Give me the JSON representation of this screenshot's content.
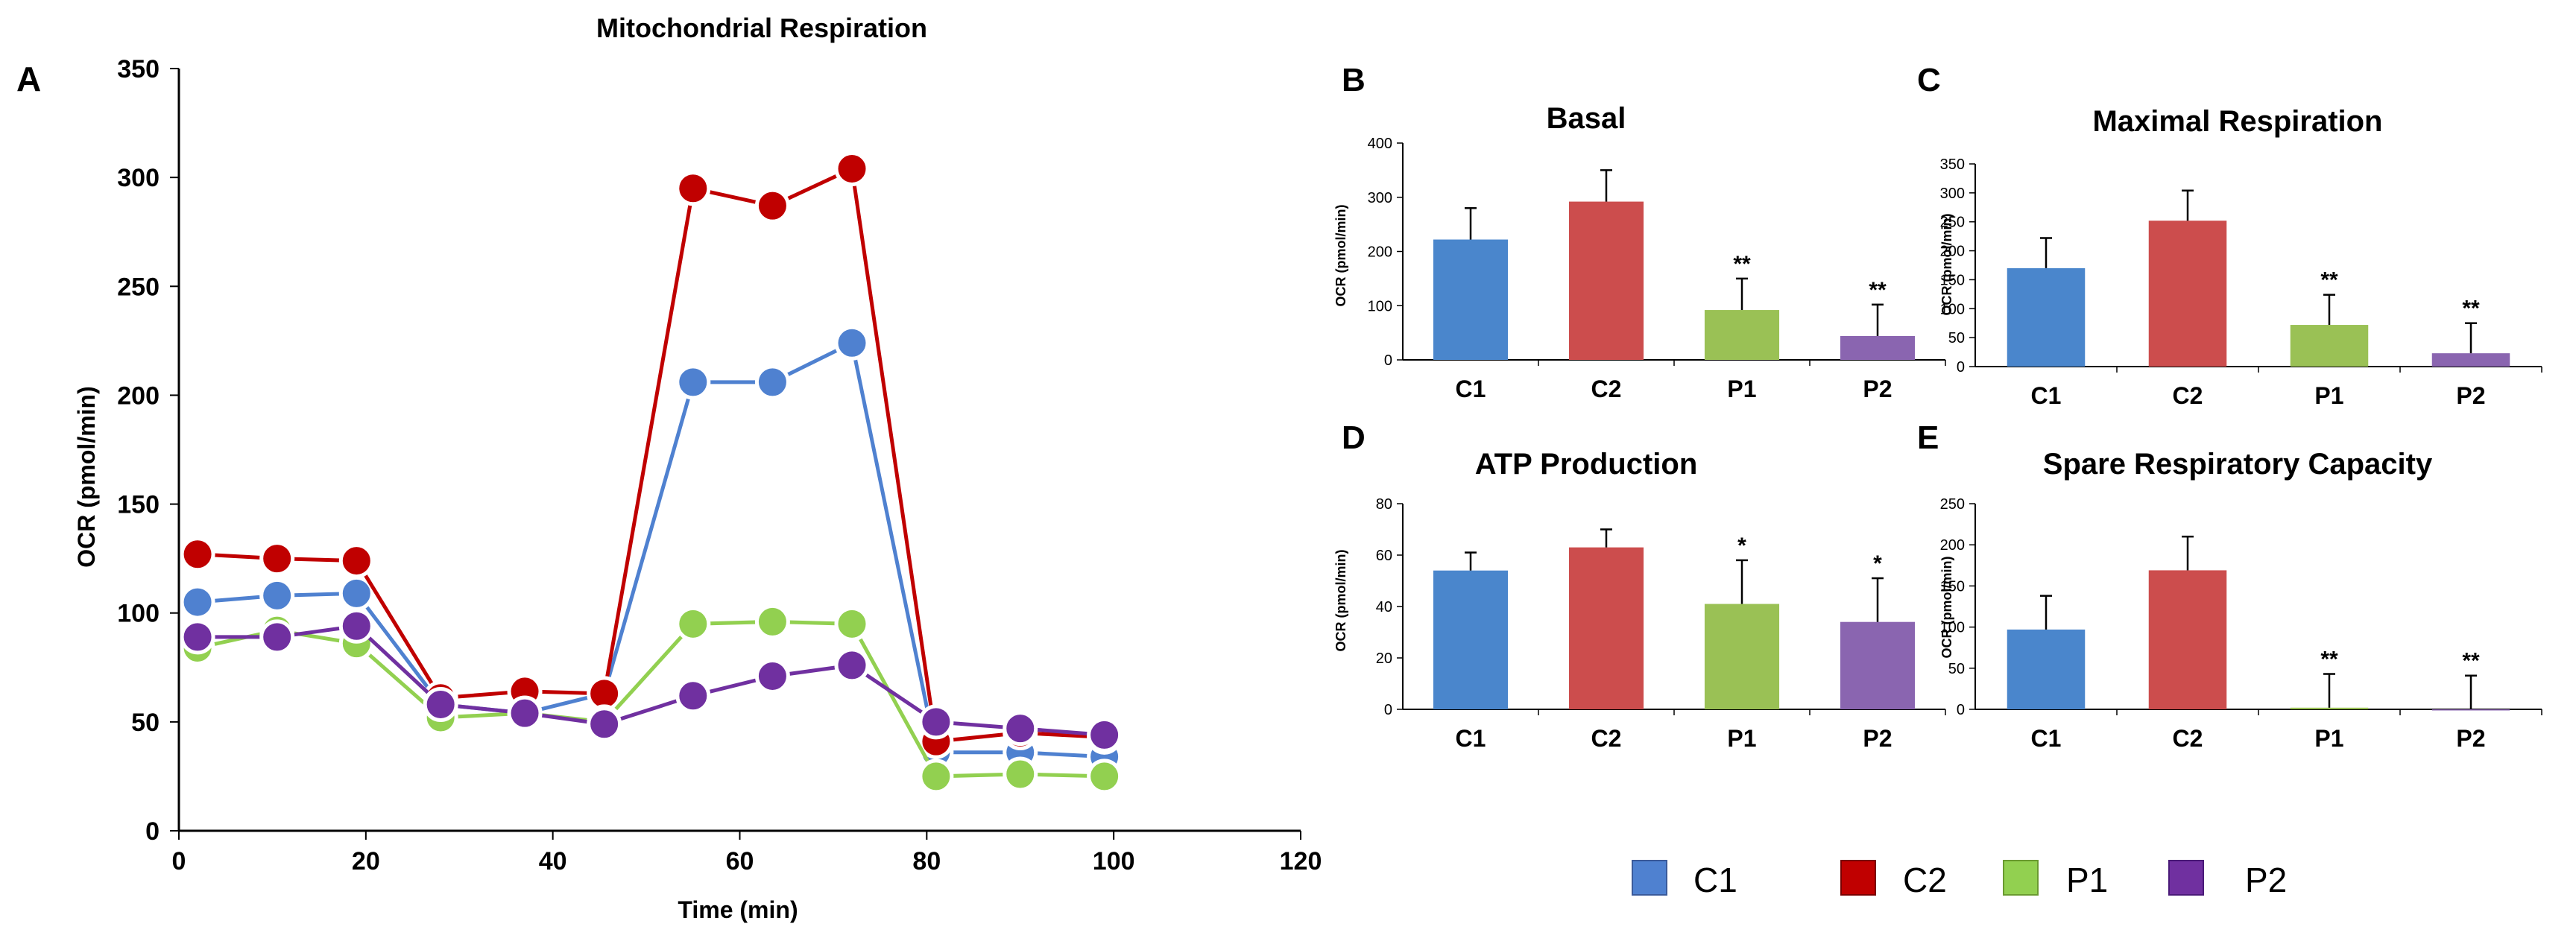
{
  "figure_title": "Mitochondrial Respiration",
  "colors": {
    "C1": "#4f81d0",
    "C2": "#c00000",
    "P1": "#92d050",
    "P2": "#7030a0",
    "bar_C1": "#4a86cc",
    "bar_C2": "#cc4d4d",
    "bar_P1": "#9ac155",
    "bar_P2": "#8a65b0"
  },
  "legend": {
    "items": [
      "C1",
      "C2",
      "P1",
      "P2"
    ]
  },
  "chart_data": [
    {
      "id": "A",
      "panel_label": "A",
      "type": "line",
      "title": "Mitochondrial Respiration",
      "xlabel": "Time (min)",
      "ylabel": "OCR (pmol/min)",
      "xlim": [
        0,
        120
      ],
      "ylim": [
        0,
        350
      ],
      "xticks": [
        0,
        20,
        40,
        60,
        80,
        100,
        120
      ],
      "yticks": [
        0,
        50,
        100,
        150,
        200,
        250,
        300,
        350
      ],
      "x": [
        2,
        10.5,
        19,
        28,
        37,
        45.5,
        55,
        63.5,
        72,
        81,
        90,
        99
      ],
      "series": [
        {
          "name": "C1",
          "values": [
            105,
            108,
            109,
            58,
            54,
            63,
            206,
            206,
            224,
            36,
            36,
            34
          ]
        },
        {
          "name": "C2",
          "values": [
            127,
            125,
            124,
            61,
            64,
            63,
            295,
            287,
            304,
            41,
            45,
            43
          ]
        },
        {
          "name": "P1",
          "values": [
            84,
            92,
            86,
            52,
            54,
            50,
            95,
            96,
            95,
            25,
            26,
            25
          ]
        },
        {
          "name": "P2",
          "values": [
            89,
            89,
            94,
            58,
            54,
            49,
            62,
            71,
            76,
            50,
            47,
            44
          ]
        }
      ]
    },
    {
      "id": "B",
      "panel_label": "B",
      "type": "bar",
      "title": "Basal",
      "ylabel": "OCR (pmol/min)",
      "ylim": [
        0,
        400
      ],
      "yticks": [
        0,
        100,
        200,
        300,
        400
      ],
      "categories": [
        "C1",
        "C2",
        "P1",
        "P2"
      ],
      "values": [
        222,
        292,
        92,
        44
      ],
      "errors": [
        58,
        58,
        58,
        58
      ],
      "annotations": [
        "",
        "",
        "**",
        "**"
      ]
    },
    {
      "id": "C",
      "panel_label": "C",
      "type": "bar",
      "title": "Maximal Respiration",
      "ylabel": "OCR (pmol/min)",
      "ylim": [
        0,
        350
      ],
      "yticks": [
        0,
        50,
        100,
        150,
        200,
        250,
        300,
        350
      ],
      "categories": [
        "C1",
        "C2",
        "P1",
        "P2"
      ],
      "values": [
        170,
        252,
        72,
        23
      ],
      "errors": [
        52,
        52,
        52,
        52
      ],
      "annotations": [
        "",
        "",
        "**",
        "**"
      ]
    },
    {
      "id": "D",
      "panel_label": "D",
      "type": "bar",
      "title": "ATP Production",
      "ylabel": "OCR (pmol/min)",
      "ylim": [
        0,
        80
      ],
      "yticks": [
        0,
        20,
        40,
        60,
        80
      ],
      "categories": [
        "C1",
        "C2",
        "P1",
        "P2"
      ],
      "values": [
        54,
        63,
        41,
        34
      ],
      "errors": [
        7,
        7,
        17,
        17
      ],
      "annotations": [
        "",
        "",
        "*",
        "*"
      ]
    },
    {
      "id": "E",
      "panel_label": "E",
      "type": "bar",
      "title": "Spare Respiratory Capacity",
      "ylabel": "OCR (pmol/min)",
      "ylim": [
        0,
        250
      ],
      "yticks": [
        0,
        50,
        100,
        150,
        200,
        250
      ],
      "categories": [
        "C1",
        "C2",
        "P1",
        "P2"
      ],
      "values": [
        97,
        169,
        2,
        0
      ],
      "errors": [
        41,
        41,
        41,
        41
      ],
      "annotations": [
        "",
        "",
        "**",
        "**"
      ]
    }
  ]
}
